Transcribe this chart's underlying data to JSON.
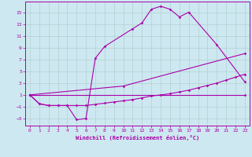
{
  "xlabel": "Windchill (Refroidissement éolien,°C)",
  "background_color": "#cde8f0",
  "line_color": "#aa00aa",
  "grid_color": "#aacccc",
  "xlim": [
    -0.5,
    23.5
  ],
  "ylim": [
    -4.2,
    16.8
  ],
  "yticks": [
    -3,
    -1,
    1,
    3,
    5,
    7,
    9,
    11,
    13,
    15
  ],
  "xticks": [
    0,
    1,
    2,
    3,
    4,
    5,
    6,
    7,
    8,
    9,
    10,
    11,
    12,
    13,
    14,
    15,
    16,
    17,
    18,
    19,
    20,
    21,
    22,
    23
  ],
  "line1_x": [
    0,
    1,
    2,
    3,
    4,
    5,
    6,
    7,
    8,
    11,
    12,
    13,
    14,
    15,
    16,
    17,
    20,
    23
  ],
  "line1_y": [
    1,
    -0.5,
    -0.8,
    -0.8,
    -0.8,
    -3.2,
    -3.0,
    7.2,
    9.2,
    12.2,
    13.2,
    15.5,
    16.0,
    15.5,
    14.2,
    15.0,
    9.5,
    3.2
  ],
  "line2_x": [
    0,
    23
  ],
  "line2_y": [
    1.0,
    1.0
  ],
  "line3_x": [
    0,
    10,
    23
  ],
  "line3_y": [
    1.0,
    2.5,
    8.0
  ],
  "line4_x": [
    0,
    1,
    2,
    3,
    4,
    5,
    6,
    7,
    8,
    9,
    10,
    11,
    12,
    13,
    14,
    15,
    16,
    17,
    18,
    19,
    20,
    21,
    22,
    23
  ],
  "line4_y": [
    1.0,
    -0.5,
    -0.8,
    -0.8,
    -0.8,
    -0.8,
    -0.8,
    -0.6,
    -0.4,
    -0.2,
    0.0,
    0.2,
    0.5,
    0.8,
    1.0,
    1.2,
    1.5,
    1.8,
    2.2,
    2.6,
    3.0,
    3.5,
    4.0,
    4.5
  ]
}
